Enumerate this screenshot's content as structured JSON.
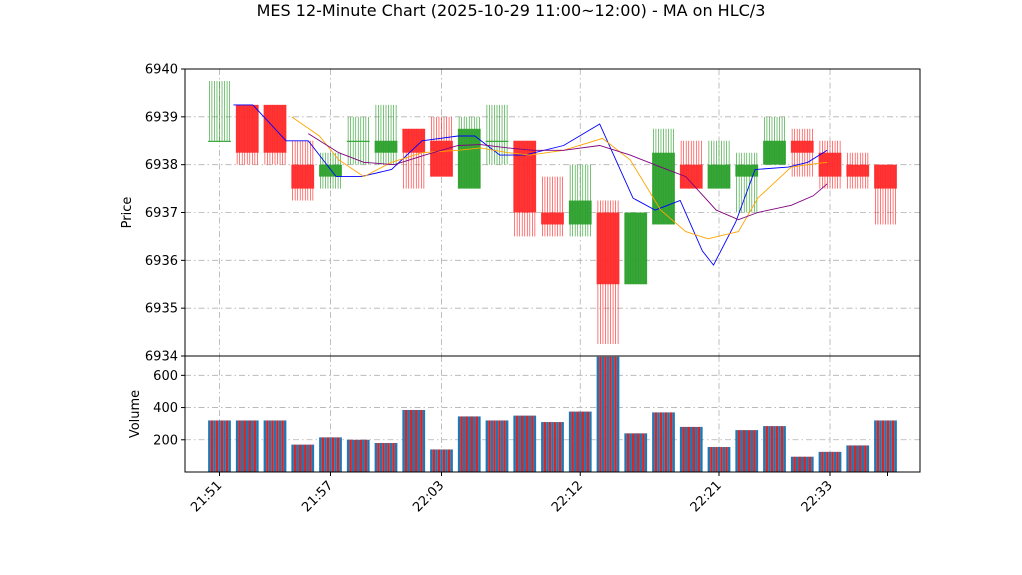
{
  "chart_data": {
    "type": "candlestick",
    "title": "MES 12-Minute Chart (2025-10-29 11:00~12:00) - MA on HLC/3",
    "price_panel": {
      "ylabel": "Price",
      "ylim": [
        6934,
        6940
      ],
      "yticks": [
        6934,
        6935,
        6936,
        6937,
        6938,
        6939,
        6940
      ],
      "grid": true
    },
    "volume_panel": {
      "ylabel": "Volume",
      "ylim": [
        0,
        720
      ],
      "yticks": [
        200,
        400,
        600
      ],
      "grid": true
    },
    "x_tick_labels": [
      "21:51",
      "21:57",
      "22:03",
      "22:12",
      "22:21",
      "22:33"
    ],
    "x_tick_index": [
      0,
      4,
      8,
      13,
      18,
      22
    ],
    "up_color": "#2ca02c",
    "down_color": "#ff2a2a",
    "volume_colors": [
      "#1f77b4",
      "#d62728"
    ],
    "ma_colors": [
      "#0000ff",
      "#ffa500",
      "#800080"
    ],
    "candles": [
      {
        "open": 6938.5,
        "close": 6938.5,
        "high": 6939.75,
        "low": 6938.5,
        "volume": 320
      },
      {
        "open": 6939.25,
        "close": 6938.25,
        "high": 6939.25,
        "low": 6938.0,
        "volume": 320
      },
      {
        "open": 6939.25,
        "close": 6938.25,
        "high": 6939.25,
        "low": 6938.0,
        "volume": 320
      },
      {
        "open": 6938.0,
        "close": 6937.5,
        "high": 6938.5,
        "low": 6937.25,
        "volume": 170
      },
      {
        "open": 6937.75,
        "close": 6938.0,
        "high": 6938.25,
        "low": 6937.5,
        "volume": 215
      },
      {
        "open": 6938.5,
        "close": 6938.5,
        "high": 6939.0,
        "low": 6938.0,
        "volume": 200
      },
      {
        "open": 6938.25,
        "close": 6938.5,
        "high": 6939.25,
        "low": 6938.0,
        "volume": 180
      },
      {
        "open": 6938.75,
        "close": 6938.25,
        "high": 6938.75,
        "low": 6937.5,
        "volume": 385
      },
      {
        "open": 6938.5,
        "close": 6937.75,
        "high": 6939.0,
        "low": 6937.75,
        "volume": 140
      },
      {
        "open": 6937.5,
        "close": 6938.75,
        "high": 6939.0,
        "low": 6937.5,
        "volume": 345
      },
      {
        "open": 6938.5,
        "close": 6938.5,
        "high": 6939.25,
        "low": 6938.0,
        "volume": 320
      },
      {
        "open": 6938.5,
        "close": 6937.0,
        "high": 6938.5,
        "low": 6936.5,
        "volume": 350
      },
      {
        "open": 6937.0,
        "close": 6936.75,
        "high": 6937.75,
        "low": 6936.5,
        "volume": 310
      },
      {
        "open": 6936.75,
        "close": 6937.25,
        "high": 6938.0,
        "low": 6936.5,
        "volume": 375
      },
      {
        "open": 6937.0,
        "close": 6935.5,
        "high": 6937.25,
        "low": 6934.25,
        "volume": 715
      },
      {
        "open": 6935.5,
        "close": 6937.0,
        "high": 6937.0,
        "low": 6935.5,
        "volume": 240
      },
      {
        "open": 6936.75,
        "close": 6938.25,
        "high": 6938.75,
        "low": 6936.75,
        "volume": 370
      },
      {
        "open": 6938.0,
        "close": 6937.5,
        "high": 6938.5,
        "low": 6937.5,
        "volume": 280
      },
      {
        "open": 6937.5,
        "close": 6938.0,
        "high": 6938.5,
        "low": 6937.5,
        "volume": 155
      },
      {
        "open": 6937.75,
        "close": 6938.0,
        "high": 6938.25,
        "low": 6937.0,
        "volume": 260
      },
      {
        "open": 6938.0,
        "close": 6938.5,
        "high": 6939.0,
        "low": 6938.0,
        "volume": 285
      },
      {
        "open": 6938.5,
        "close": 6938.25,
        "high": 6938.75,
        "low": 6937.75,
        "volume": 95
      },
      {
        "open": 6938.25,
        "close": 6937.75,
        "high": 6938.5,
        "low": 6937.5,
        "volume": 125
      },
      {
        "open": 6938.0,
        "close": 6937.75,
        "high": 6938.25,
        "low": 6937.5,
        "volume": 165
      },
      {
        "open": 6938.0,
        "close": 6937.5,
        "high": 6938.0,
        "low": 6936.75,
        "volume": 320
      }
    ],
    "ma_lines": [
      {
        "points": [
          [
            0.5,
            6939.25
          ],
          [
            1.2,
            6939.25
          ],
          [
            2.4,
            6938.5
          ],
          [
            3.2,
            6938.5
          ],
          [
            4.2,
            6937.75
          ],
          [
            5.1,
            6937.75
          ],
          [
            6.2,
            6937.9
          ],
          [
            7.3,
            6938.5
          ],
          [
            8.6,
            6938.6
          ],
          [
            9.2,
            6938.6
          ],
          [
            10.1,
            6938.2
          ],
          [
            11.0,
            6938.2
          ],
          [
            12.4,
            6938.4
          ],
          [
            13.7,
            6938.85
          ],
          [
            14.9,
            6937.3
          ],
          [
            15.7,
            6937.05
          ],
          [
            16.6,
            6937.25
          ],
          [
            17.4,
            6936.2
          ],
          [
            17.8,
            6935.9
          ],
          [
            18.6,
            6936.8
          ],
          [
            19.3,
            6937.9
          ],
          [
            20.5,
            6937.95
          ],
          [
            21.2,
            6938.05
          ],
          [
            21.9,
            6938.3
          ]
        ]
      },
      {
        "points": [
          [
            2.6,
            6939.0
          ],
          [
            3.6,
            6938.6
          ],
          [
            4.3,
            6938.1
          ],
          [
            5.2,
            6937.75
          ],
          [
            6.2,
            6938.05
          ],
          [
            7.3,
            6938.25
          ],
          [
            8.6,
            6938.3
          ],
          [
            9.4,
            6938.35
          ],
          [
            10.4,
            6938.25
          ],
          [
            11.2,
            6938.2
          ],
          [
            12.4,
            6938.3
          ],
          [
            13.8,
            6938.55
          ],
          [
            14.8,
            6938.1
          ],
          [
            15.9,
            6937.05
          ],
          [
            16.8,
            6936.6
          ],
          [
            17.6,
            6936.45
          ],
          [
            18.7,
            6936.6
          ],
          [
            19.4,
            6937.3
          ],
          [
            20.6,
            6937.95
          ],
          [
            21.2,
            6938.0
          ],
          [
            21.9,
            6938.05
          ]
        ]
      },
      {
        "points": [
          [
            3.2,
            6938.65
          ],
          [
            4.3,
            6938.25
          ],
          [
            5.2,
            6938.05
          ],
          [
            6.3,
            6938.0
          ],
          [
            7.4,
            6938.2
          ],
          [
            8.6,
            6938.4
          ],
          [
            9.4,
            6938.42
          ],
          [
            10.4,
            6938.35
          ],
          [
            11.3,
            6938.3
          ],
          [
            12.4,
            6938.3
          ],
          [
            13.7,
            6938.4
          ],
          [
            14.8,
            6938.2
          ],
          [
            15.9,
            6937.95
          ],
          [
            16.8,
            6937.75
          ],
          [
            17.9,
            6937.05
          ],
          [
            18.7,
            6936.85
          ],
          [
            19.4,
            6937.0
          ],
          [
            20.6,
            6937.15
          ],
          [
            21.4,
            6937.35
          ],
          [
            21.9,
            6937.6
          ]
        ]
      }
    ]
  }
}
